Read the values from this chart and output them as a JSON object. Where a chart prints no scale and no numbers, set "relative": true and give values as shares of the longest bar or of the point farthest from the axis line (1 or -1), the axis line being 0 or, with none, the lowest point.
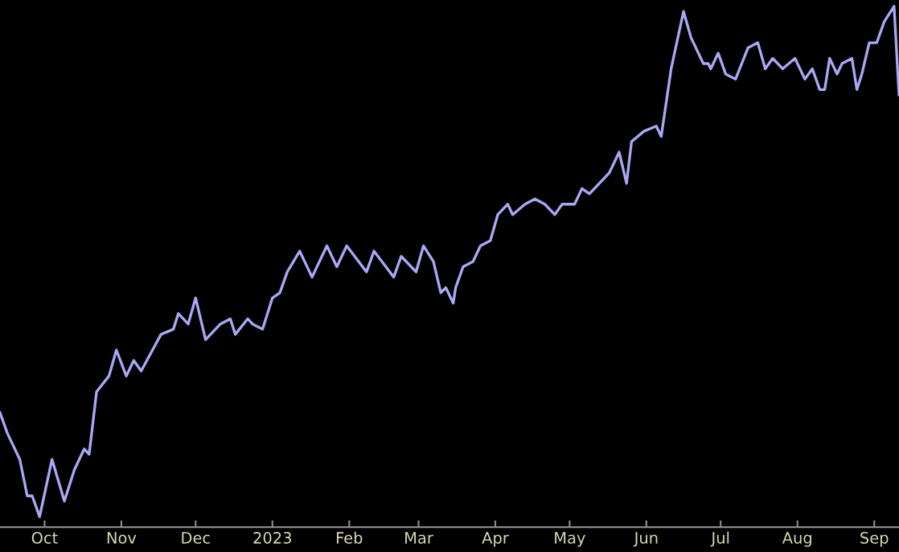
{
  "chart_data": {
    "type": "line",
    "relative": true,
    "tick_labels": "x",
    "grid": false,
    "legend": false,
    "xlim": [
      "2022-09-13",
      "2023-09-11"
    ],
    "xticks": [
      {
        "value": "2022-10-01",
        "label": "Oct"
      },
      {
        "value": "2022-11-01",
        "label": "Nov"
      },
      {
        "value": "2022-12-01",
        "label": "Dec"
      },
      {
        "value": "2023-01-01",
        "label": "2023"
      },
      {
        "value": "2023-02-01",
        "label": "Feb"
      },
      {
        "value": "2023-03-01",
        "label": "Mar"
      },
      {
        "value": "2023-04-01",
        "label": "Apr"
      },
      {
        "value": "2023-05-01",
        "label": "May"
      },
      {
        "value": "2023-06-01",
        "label": "Jun"
      },
      {
        "value": "2023-07-01",
        "label": "Jul"
      },
      {
        "value": "2023-08-01",
        "label": "Aug"
      },
      {
        "value": "2023-09-01",
        "label": "Sep"
      }
    ],
    "x": [
      "2022-09-13",
      "2022-09-16",
      "2022-09-21",
      "2022-09-24",
      "2022-09-26",
      "2022-09-29",
      "2022-10-04",
      "2022-10-09",
      "2022-10-13",
      "2022-10-17",
      "2022-10-19",
      "2022-10-22",
      "2022-10-27",
      "2022-10-30",
      "2022-11-03",
      "2022-11-06",
      "2022-11-09",
      "2022-11-17",
      "2022-11-22",
      "2022-11-24",
      "2022-11-28",
      "2022-12-01",
      "2022-12-05",
      "2022-12-11",
      "2022-12-15",
      "2022-12-17",
      "2022-12-22",
      "2022-12-24",
      "2022-12-28",
      "2023-01-01",
      "2023-01-04",
      "2023-01-07",
      "2023-01-12",
      "2023-01-17",
      "2023-01-23",
      "2023-01-27",
      "2023-01-31",
      "2023-02-08",
      "2023-02-11",
      "2023-02-19",
      "2023-02-22",
      "2023-02-28",
      "2023-03-03",
      "2023-03-07",
      "2023-03-10",
      "2023-03-12",
      "2023-03-15",
      "2023-03-16",
      "2023-03-19",
      "2023-03-23",
      "2023-03-26",
      "2023-03-30",
      "2023-04-02",
      "2023-04-06",
      "2023-04-08",
      "2023-04-13",
      "2023-04-17",
      "2023-04-21",
      "2023-04-25",
      "2023-04-28",
      "2023-05-03",
      "2023-05-06",
      "2023-05-09",
      "2023-05-13",
      "2023-05-17",
      "2023-05-21",
      "2023-05-24",
      "2023-05-26",
      "2023-05-31",
      "2023-06-05",
      "2023-06-07",
      "2023-06-11",
      "2023-06-16",
      "2023-06-19",
      "2023-06-24",
      "2023-06-26",
      "2023-06-27",
      "2023-06-30",
      "2023-07-03",
      "2023-07-07",
      "2023-07-12",
      "2023-07-16",
      "2023-07-19",
      "2023-07-22",
      "2023-07-26",
      "2023-07-31",
      "2023-08-04",
      "2023-08-07",
      "2023-08-10",
      "2023-08-12",
      "2023-08-14",
      "2023-08-17",
      "2023-08-19",
      "2023-08-23",
      "2023-08-25",
      "2023-08-27",
      "2023-08-30",
      "2023-09-02",
      "2023-09-05",
      "2023-09-09",
      "2023-09-11"
    ],
    "series": [
      {
        "color": "#a8a8f4",
        "values": [
          0.22,
          0.18,
          0.13,
          0.06,
          0.06,
          0.02,
          0.13,
          0.05,
          0.11,
          0.15,
          0.14,
          0.26,
          0.29,
          0.34,
          0.29,
          0.32,
          0.3,
          0.37,
          0.38,
          0.41,
          0.39,
          0.44,
          0.36,
          0.39,
          0.4,
          0.37,
          0.4,
          0.39,
          0.38,
          0.44,
          0.45,
          0.49,
          0.53,
          0.48,
          0.54,
          0.5,
          0.54,
          0.49,
          0.53,
          0.48,
          0.52,
          0.49,
          0.54,
          0.51,
          0.45,
          0.46,
          0.43,
          0.46,
          0.5,
          0.51,
          0.54,
          0.55,
          0.6,
          0.62,
          0.6,
          0.62,
          0.63,
          0.62,
          0.6,
          0.62,
          0.62,
          0.65,
          0.64,
          0.66,
          0.68,
          0.72,
          0.66,
          0.74,
          0.76,
          0.77,
          0.75,
          0.88,
          0.99,
          0.94,
          0.89,
          0.89,
          0.88,
          0.91,
          0.87,
          0.86,
          0.92,
          0.93,
          0.88,
          0.9,
          0.88,
          0.9,
          0.86,
          0.88,
          0.84,
          0.84,
          0.9,
          0.87,
          0.89,
          0.9,
          0.84,
          0.87,
          0.93,
          0.93,
          0.97,
          1,
          0.83
        ]
      }
    ]
  }
}
